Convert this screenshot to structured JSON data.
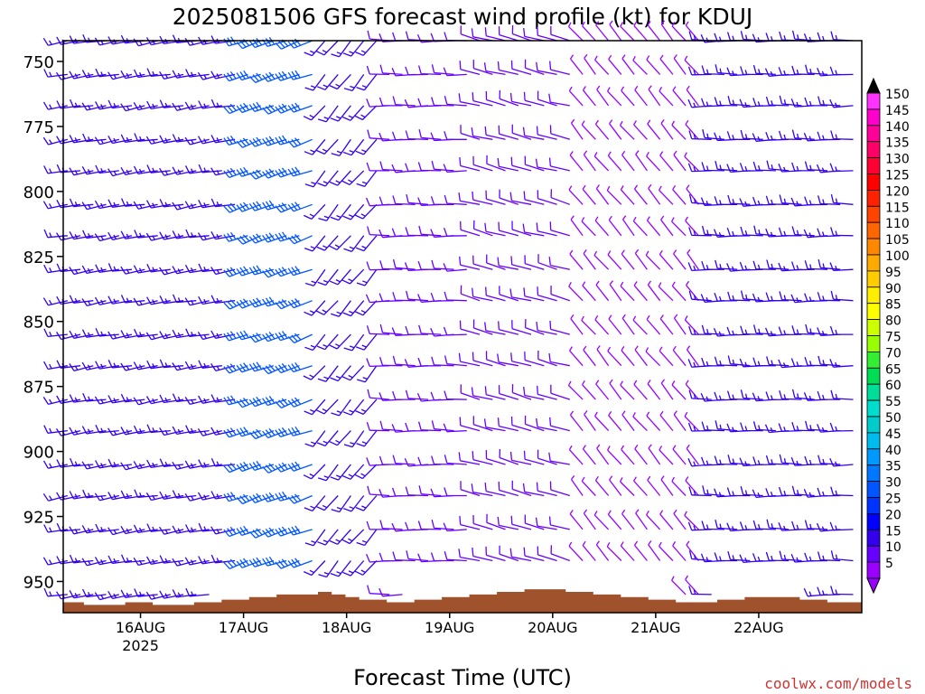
{
  "chart_data": {
    "type": "wind-barb-profile",
    "title": "2025081506 GFS forecast wind profile (kt) for KDUJ",
    "xlabel": "Forecast Time (UTC)",
    "ylabel": "",
    "y_axis_inverted": true,
    "y_ticks": [
      "750",
      "775",
      "800",
      "825",
      "850",
      "875",
      "900",
      "925",
      "950"
    ],
    "y_range_hpa": [
      742,
      962
    ],
    "x_ticks": [
      {
        "label": "16AUG",
        "sublabel": "2025"
      },
      {
        "label": "17AUG",
        "sublabel": ""
      },
      {
        "label": "18AUG",
        "sublabel": ""
      },
      {
        "label": "19AUG",
        "sublabel": ""
      },
      {
        "label": "20AUG",
        "sublabel": ""
      },
      {
        "label": "21AUG",
        "sublabel": ""
      },
      {
        "label": "22AUG",
        "sublabel": ""
      }
    ],
    "x_range_hours": [
      0,
      186
    ],
    "barb_levels_hpa": [
      742,
      755,
      767,
      780,
      792,
      805,
      817,
      830,
      842,
      855,
      867,
      880,
      892,
      905,
      917,
      930,
      942,
      955
    ],
    "time_step_hours": 3,
    "wind_segments": [
      {
        "from_hours": 0,
        "to_hours": 42,
        "dir_deg": 260,
        "speed_kt": 15
      },
      {
        "from_hours": 42,
        "to_hours": 60,
        "dir_deg": 250,
        "speed_kt": 30
      },
      {
        "from_hours": 60,
        "to_hours": 75,
        "dir_deg": 220,
        "speed_kt": 15
      },
      {
        "from_hours": 75,
        "to_hours": 96,
        "dir_deg": 270,
        "speed_kt": 12
      },
      {
        "from_hours": 96,
        "to_hours": 120,
        "dir_deg": 285,
        "speed_kt": 10
      },
      {
        "from_hours": 120,
        "to_hours": 150,
        "dir_deg": 320,
        "speed_kt": 8
      },
      {
        "from_hours": 150,
        "to_hours": 186,
        "dir_deg": 270,
        "speed_kt": 15
      }
    ],
    "terrain_pressure_hpa": [
      958,
      958,
      959,
      959,
      959,
      958,
      958,
      959,
      959,
      959,
      958,
      958,
      957,
      957,
      956,
      956,
      955,
      955,
      955,
      954,
      955,
      956,
      957,
      957,
      958,
      958,
      957,
      957,
      956,
      956,
      955,
      955,
      954,
      954,
      953,
      953,
      953,
      954,
      954,
      955,
      955,
      956,
      956,
      957,
      957,
      958,
      958,
      958,
      957,
      957,
      956,
      956,
      956,
      956,
      957,
      957,
      958,
      958,
      958
    ],
    "colorbar": {
      "labels": [
        "150",
        "145",
        "140",
        "135",
        "130",
        "125",
        "120",
        "115",
        "110",
        "105",
        "100",
        "95",
        "90",
        "85",
        "80",
        "75",
        "70",
        "65",
        "60",
        "55",
        "50",
        "45",
        "40",
        "35",
        "30",
        "25",
        "20",
        "15",
        "10",
        "5"
      ],
      "colors": [
        "#ff33ff",
        "#ff00cc",
        "#ff0099",
        "#ff0066",
        "#ff0033",
        "#ff0000",
        "#ff2200",
        "#ff4400",
        "#ff6600",
        "#ff8800",
        "#ffaa00",
        "#ffcc00",
        "#ffee00",
        "#ffff00",
        "#ccff00",
        "#99ff00",
        "#33ee33",
        "#00dd55",
        "#00dd99",
        "#00ddcc",
        "#00cccc",
        "#00bbee",
        "#0099ff",
        "#0077ff",
        "#0055ff",
        "#0033ff",
        "#0000ff",
        "#3300ee",
        "#6600ff",
        "#9900ff"
      ]
    },
    "legend_position": "right",
    "grid": false,
    "terrain_color": "#a0522d",
    "credit": "coolwx.com/models"
  }
}
